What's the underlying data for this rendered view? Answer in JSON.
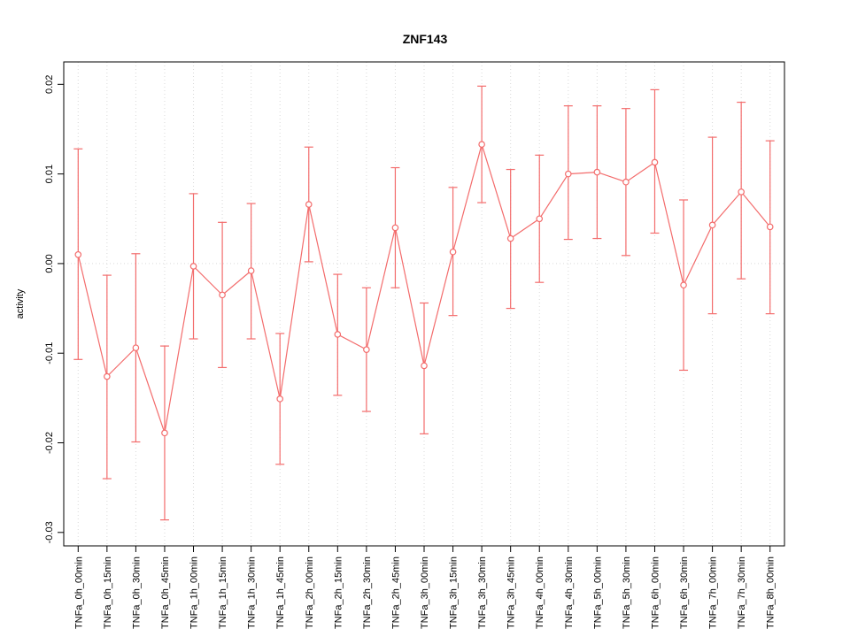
{
  "chart_data": {
    "type": "line",
    "title": "ZNF143",
    "xlabel": "",
    "ylabel": "activity",
    "ylim": [
      -0.03,
      0.02
    ],
    "yticks": [
      -0.03,
      -0.02,
      -0.01,
      0.0,
      0.01,
      0.02
    ],
    "grid": {
      "vertical_per_category": true,
      "zero_line": true,
      "style": "dotted",
      "color": "#d9d9d9"
    },
    "legend": "none",
    "marker": "open-circle",
    "series_color": "#f36c6c",
    "categories": [
      "TNFa_0h_00min",
      "TNFa_0h_15min",
      "TNFa_0h_30min",
      "TNFa_0h_45min",
      "TNFa_1h_00min",
      "TNFa_1h_15min",
      "TNFa_1h_30min",
      "TNFa_1h_45min",
      "TNFa_2h_00min",
      "TNFa_2h_15min",
      "TNFa_2h_30min",
      "TNFa_2h_45min",
      "TNFa_3h_00min",
      "TNFa_3h_15min",
      "TNFa_3h_30min",
      "TNFa_3h_45min",
      "TNFa_4h_00min",
      "TNFa_4h_30min",
      "TNFa_5h_00min",
      "TNFa_5h_30min",
      "TNFa_6h_00min",
      "TNFa_6h_30min",
      "TNFa_7h_00min",
      "TNFa_7h_30min",
      "TNFa_8h_00min"
    ],
    "series": [
      {
        "name": "activity",
        "values": [
          0.001,
          -0.0126,
          -0.0094,
          -0.0189,
          -0.0003,
          -0.0035,
          -0.0008,
          -0.0151,
          0.0066,
          -0.0079,
          -0.0096,
          0.004,
          -0.0114,
          0.0013,
          0.0133,
          0.0028,
          0.005,
          0.01,
          0.0102,
          0.0091,
          0.0113,
          -0.0024,
          0.0043,
          0.008,
          0.0041
        ],
        "ci_low": [
          -0.0107,
          -0.024,
          -0.0199,
          -0.0286,
          -0.0084,
          -0.0116,
          -0.0084,
          -0.0224,
          0.0002,
          -0.0147,
          -0.0165,
          -0.0027,
          -0.019,
          -0.0058,
          0.0068,
          -0.005,
          -0.0021,
          0.0027,
          0.0028,
          0.0009,
          0.0034,
          -0.0119,
          -0.0056,
          -0.0017,
          -0.0056
        ],
        "ci_high": [
          0.0128,
          -0.0013,
          0.0011,
          -0.0092,
          0.0078,
          0.0046,
          0.0067,
          -0.0078,
          0.013,
          -0.0012,
          -0.0027,
          0.0107,
          -0.0044,
          0.0085,
          0.0198,
          0.0105,
          0.0121,
          0.0176,
          0.0176,
          0.0173,
          0.0194,
          0.0071,
          0.0141,
          0.018,
          0.0137
        ]
      }
    ]
  }
}
